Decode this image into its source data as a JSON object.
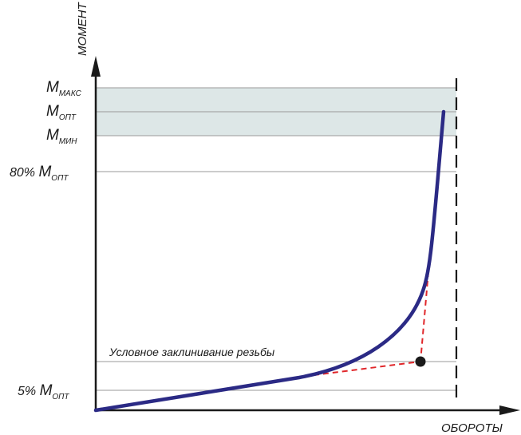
{
  "axes": {
    "y_title": "МОМЕНТ",
    "x_title": "ОБОРОТЫ"
  },
  "levels": {
    "m_max": {
      "main": "M",
      "sub": "МАКС"
    },
    "m_opt": {
      "main": "M",
      "sub": "ОПТ"
    },
    "m_min": {
      "main": "M",
      "sub": "МИН"
    },
    "m_80": {
      "prefix": "80% ",
      "main": "M",
      "sub": "ОПТ"
    },
    "m_5": {
      "prefix": "5% ",
      "main": "M",
      "sub": "ОПТ"
    }
  },
  "annotation": "Условное заклинивание резьбы",
  "colors": {
    "curve": "#2b2a85",
    "guide": "#e0262a",
    "band": "#dde7e7",
    "axis": "#1a1a1a",
    "gridline": "#9a9a9a"
  }
}
